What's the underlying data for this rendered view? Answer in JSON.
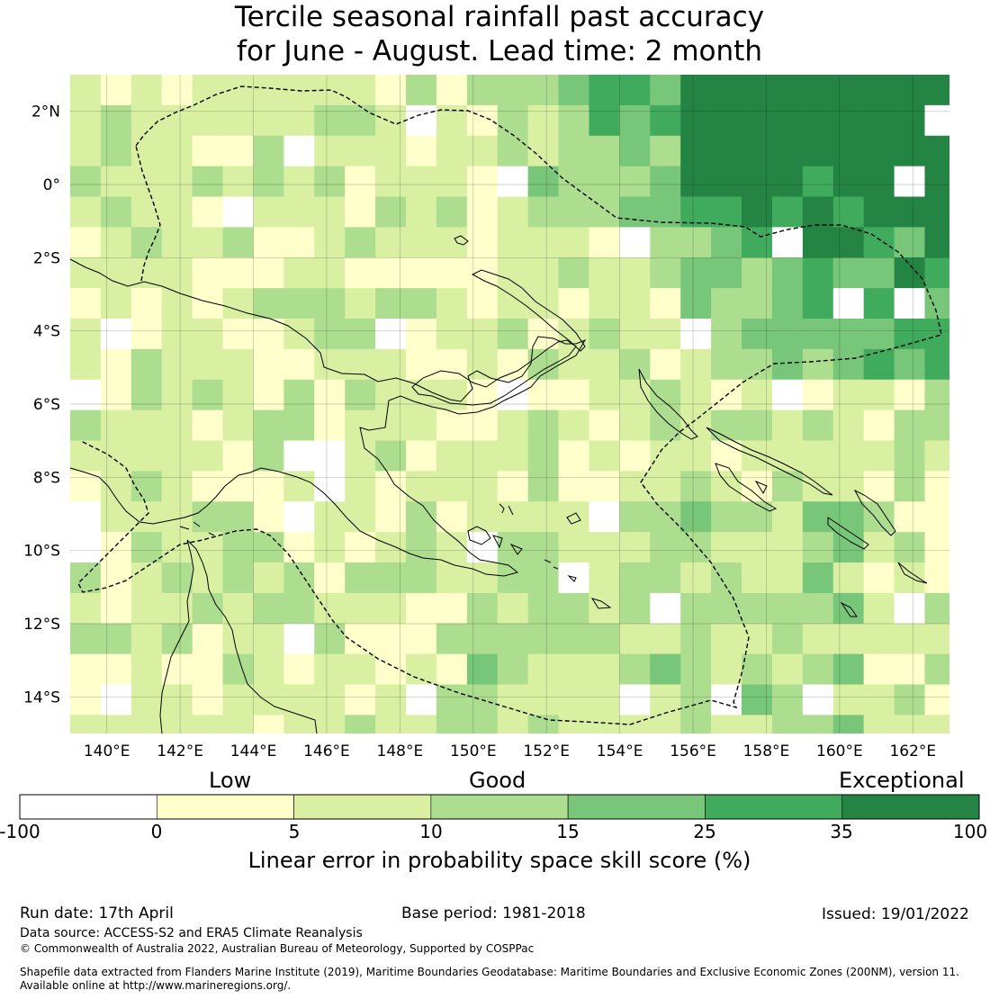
{
  "title": {
    "line1": "Tercile seasonal rainfall past accuracy",
    "line2": "for June - August. Lead time: 2 month"
  },
  "map": {
    "lon_labels": [
      "140°E",
      "142°E",
      "144°E",
      "146°E",
      "148°E",
      "150°E",
      "152°E",
      "154°E",
      "156°E",
      "158°E",
      "160°E",
      "162°E"
    ],
    "lat_labels": [
      "2°N",
      "0°",
      "2°S",
      "4°S",
      "6°S",
      "8°S",
      "10°S",
      "12°S",
      "14°S"
    ],
    "lon_range": [
      139,
      163
    ],
    "lat_range": [
      -15,
      3
    ]
  },
  "colorbar": {
    "categories": [
      "Low",
      "Good",
      "Exceptional"
    ],
    "ticks": [
      "-100",
      "0",
      "5",
      "10",
      "15",
      "25",
      "35",
      "100"
    ],
    "colors": [
      "#ffffff",
      "#ffffcc",
      "#d9f0a3",
      "#addd8e",
      "#78c679",
      "#41ab5d",
      "#238443"
    ],
    "label": "Linear error in probability space skill score (%)"
  },
  "footer": {
    "run_date": "Run date: 17th April",
    "base_period": "Base period: 1981-2018",
    "issued": "Issued: 19/01/2022",
    "data_source": "Data source: ACCESS-S2 and ERA5 Climate Reanalysis",
    "copyright": "© Commonwealth of Australia 2022, Australian Bureau of Meteorology, Supported by COSPPac",
    "shapefile_line1": "Shapefile data extracted from Flanders Marine Institute (2019), Maritime Boundaries Geodatabase: Maritime Boundaries and Exclusive Economic Zones (200NM), version 11.",
    "shapefile_line2": "Available online at http://www.marineregions.org/."
  }
}
